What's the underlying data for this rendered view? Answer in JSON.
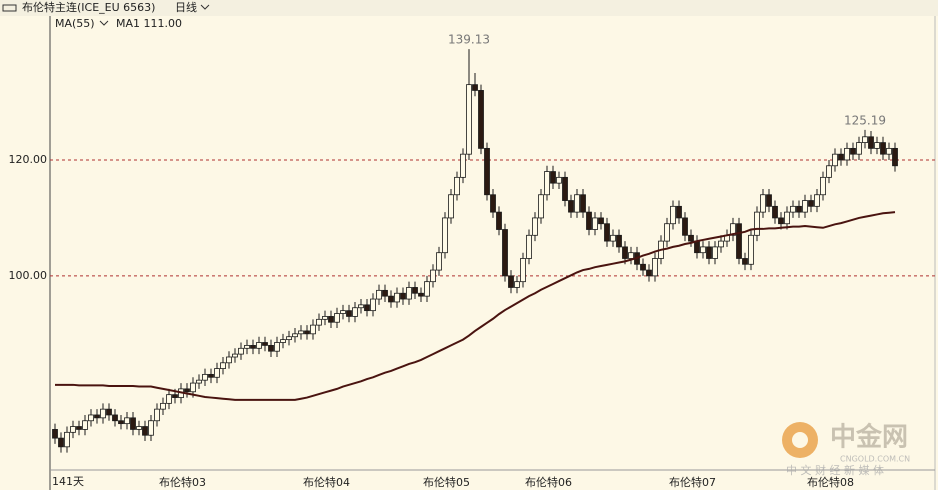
{
  "header": {
    "title": "布伦特主连(ICE_EU 6563)",
    "period": "日线",
    "indicator": "MA(55)",
    "ma_label": "MA1 111.00"
  },
  "watermark": {
    "name": "中金网",
    "url": "CNGOLD.COM.CN",
    "slogan": "中 文 财 经 新 媒 体"
  },
  "chart_data": {
    "type": "candlestick",
    "span_label": "141天",
    "categories": [
      null,
      null,
      null,
      null,
      null,
      null,
      null,
      null,
      null,
      null,
      null,
      null,
      null,
      null,
      null,
      null,
      null,
      "布伦特03",
      null,
      null,
      null,
      null,
      null,
      null,
      null,
      null,
      null,
      null,
      null,
      null,
      null,
      null,
      null,
      null,
      null,
      null,
      null,
      null,
      null,
      null,
      null,
      "布伦特04",
      null,
      null,
      null,
      null,
      null,
      null,
      null,
      null,
      null,
      null,
      null,
      null,
      null,
      null,
      null,
      null,
      null,
      null,
      null,
      "布伦特05",
      null,
      null,
      null,
      null,
      null,
      null,
      null,
      null,
      null,
      null,
      null,
      null,
      null,
      null,
      null,
      null,
      "布伦特06",
      null,
      null,
      null,
      null,
      null,
      null,
      null,
      null,
      null,
      null,
      null,
      null,
      null,
      null,
      null,
      null,
      null,
      null,
      null,
      null,
      null,
      null,
      null,
      "布伦特07",
      null,
      null,
      null,
      null,
      null,
      null,
      null,
      null,
      null,
      null,
      null,
      null,
      null,
      null,
      null,
      null,
      null,
      null,
      null,
      null,
      null,
      null,
      "布伦特08",
      null,
      null,
      null,
      null,
      null,
      null,
      null,
      null,
      null,
      null,
      null,
      null,
      null,
      null,
      null
    ],
    "open": [
      73.5,
      72,
      70.5,
      73,
      74,
      73.5,
      75,
      76,
      75.5,
      77,
      76,
      75,
      74.5,
      75.5,
      73.5,
      74,
      72.5,
      75,
      77,
      78,
      79.5,
      79,
      80.5,
      80,
      81.5,
      82,
      83,
      82.5,
      84,
      85,
      86,
      86.5,
      87.5,
      88,
      87.5,
      88.5,
      88,
      87,
      88.5,
      89,
      89.5,
      90,
      90.5,
      90,
      91.5,
      92.5,
      93,
      92,
      93.5,
      94,
      93,
      94.5,
      95,
      94,
      96,
      97.5,
      96.5,
      95.5,
      97,
      96,
      98,
      97,
      96.5,
      99,
      101,
      104,
      110,
      114,
      117,
      121,
      133,
      132,
      122,
      114,
      111,
      108,
      100,
      98,
      99,
      103,
      107,
      110,
      114,
      118,
      116,
      117,
      113,
      111,
      114,
      111,
      108,
      110,
      109,
      106,
      107,
      105,
      103,
      104,
      102,
      101,
      100,
      103,
      106,
      109,
      112,
      110,
      107,
      106,
      104,
      105,
      103,
      105,
      106,
      107,
      109,
      103,
      102,
      107,
      111,
      114,
      112,
      110,
      109,
      111,
      112,
      111,
      113,
      112,
      114,
      117,
      119,
      121,
      120,
      122,
      121,
      123,
      124,
      122,
      123,
      121,
      122
    ],
    "high": [
      74.5,
      73,
      74,
      75,
      75,
      76,
      77,
      77,
      78,
      78,
      77,
      76,
      76.5,
      76.5,
      75,
      75,
      76,
      78,
      79,
      80.5,
      80.5,
      81.5,
      81.5,
      82.5,
      83,
      84,
      84,
      85,
      86,
      87,
      87.5,
      88.5,
      89,
      89,
      89.5,
      89.5,
      89,
      89.5,
      90,
      90.5,
      91,
      91.5,
      91.5,
      92.5,
      93.5,
      94,
      94,
      94.5,
      95,
      95,
      95.5,
      96,
      96,
      97,
      98.5,
      98.5,
      97.5,
      98,
      98,
      99,
      99,
      98,
      100,
      102,
      105,
      111,
      115,
      118,
      122,
      139.13,
      135,
      133,
      123,
      115,
      112,
      109,
      101,
      100,
      104,
      108,
      111,
      115,
      119,
      119,
      118,
      118,
      114,
      115,
      115,
      112,
      111,
      111,
      110,
      108,
      108,
      106,
      105,
      105,
      103,
      102,
      104,
      107,
      110,
      113,
      113,
      111,
      108,
      107,
      106,
      106,
      106,
      107,
      108,
      110,
      110,
      104,
      108,
      112,
      115,
      115,
      113,
      111,
      112,
      113,
      113,
      114,
      114,
      115,
      118,
      120,
      122,
      122,
      123,
      123,
      124,
      125.19,
      125,
      124,
      124,
      123,
      123
    ],
    "low": [
      71,
      69.5,
      69.5,
      72,
      72.5,
      72.5,
      74,
      74.5,
      74.5,
      75,
      74,
      73.5,
      73.5,
      72.5,
      72.5,
      71.5,
      71.5,
      74,
      76,
      77,
      78,
      78,
      79,
      79,
      80.5,
      81,
      81.5,
      81.5,
      83,
      84,
      85,
      85.5,
      86.5,
      86.5,
      86.5,
      87,
      86,
      86,
      87.5,
      88,
      88.5,
      89,
      89,
      89,
      90.5,
      91.5,
      91,
      91,
      92.5,
      92,
      92,
      93.5,
      93,
      93,
      95,
      95.5,
      94.5,
      94.5,
      95,
      95,
      96,
      95.5,
      95.5,
      98,
      100,
      103,
      109,
      113,
      116,
      120,
      131,
      121,
      113,
      110,
      107,
      99,
      97,
      97,
      98,
      102,
      106,
      109,
      113,
      115,
      115,
      112,
      110,
      110,
      110,
      107,
      107,
      108,
      105,
      105,
      104,
      102,
      102,
      101,
      100,
      99,
      99,
      102,
      105,
      108,
      109,
      106,
      105,
      103,
      103,
      102,
      102,
      104,
      105,
      106,
      102,
      101,
      101,
      106,
      110,
      111,
      109,
      108,
      108,
      110,
      110,
      110,
      111,
      111,
      113,
      116,
      118,
      119,
      119,
      120,
      120,
      122,
      121,
      121,
      120,
      120,
      118
    ],
    "close": [
      72,
      70.5,
      73,
      74,
      73.5,
      75,
      76,
      75.5,
      77,
      76,
      75,
      74.5,
      75.5,
      73.5,
      74,
      72.5,
      75,
      77,
      78,
      79.5,
      79,
      80.5,
      80,
      81.5,
      82,
      83,
      82.5,
      84,
      85,
      86,
      86.5,
      87.5,
      88,
      87.5,
      88.5,
      88,
      87,
      88.5,
      89,
      89.5,
      90,
      90.5,
      90,
      91.5,
      92.5,
      93,
      92,
      93.5,
      94,
      93,
      94.5,
      95,
      94,
      96,
      97.5,
      96.5,
      95.5,
      97,
      96,
      98,
      97,
      96.5,
      99,
      101,
      104,
      110,
      114,
      117,
      121,
      133,
      132,
      122,
      114,
      111,
      108,
      100,
      98,
      99,
      103,
      107,
      110,
      114,
      118,
      116,
      117,
      113,
      111,
      114,
      111,
      108,
      110,
      109,
      106,
      107,
      105,
      103,
      104,
      102,
      101,
      100,
      103,
      106,
      109,
      112,
      110,
      107,
      106,
      104,
      105,
      103,
      105,
      106,
      107,
      109,
      103,
      102,
      107,
      111,
      114,
      112,
      110,
      109,
      111,
      112,
      111,
      113,
      112,
      114,
      117,
      119,
      121,
      120,
      122,
      121,
      123,
      124,
      122,
      123,
      121,
      122,
      119
    ],
    "ma": [
      81.2,
      81.2,
      81.2,
      81.2,
      81.1,
      81.1,
      81.1,
      81.1,
      81.1,
      81.0,
      81.0,
      81.0,
      81.0,
      81.0,
      80.9,
      80.9,
      80.9,
      80.7,
      80.5,
      80.3,
      80.1,
      79.9,
      79.7,
      79.5,
      79.3,
      79.1,
      79.0,
      78.9,
      78.8,
      78.7,
      78.6,
      78.6,
      78.6,
      78.6,
      78.6,
      78.6,
      78.6,
      78.6,
      78.6,
      78.6,
      78.6,
      78.8,
      79.0,
      79.3,
      79.6,
      79.9,
      80.2,
      80.5,
      80.9,
      81.2,
      81.5,
      81.8,
      82.2,
      82.5,
      82.9,
      83.3,
      83.6,
      84.0,
      84.4,
      84.8,
      85.1,
      85.5,
      86.0,
      86.5,
      87.0,
      87.5,
      88.0,
      88.5,
      89.0,
      89.7,
      90.5,
      91.2,
      91.9,
      92.6,
      93.4,
      94.1,
      94.7,
      95.3,
      95.9,
      96.5,
      97.0,
      97.6,
      98.1,
      98.6,
      99.1,
      99.6,
      100.1,
      100.6,
      101.0,
      101.2,
      101.5,
      101.7,
      101.9,
      102.1,
      102.3,
      102.5,
      102.8,
      103.1,
      103.5,
      103.8,
      104.2,
      104.5,
      104.7,
      105.0,
      105.2,
      105.5,
      105.7,
      106.0,
      106.2,
      106.4,
      106.6,
      106.8,
      107.0,
      107.2,
      107.4,
      107.6,
      108.0,
      108.1,
      108.1,
      108.2,
      108.2,
      108.3,
      108.4,
      108.5,
      108.5,
      108.6,
      108.5,
      108.4,
      108.3,
      108.6,
      108.9,
      109.1,
      109.4,
      109.7,
      110.0,
      110.2,
      110.4,
      110.6,
      110.8,
      110.9,
      111.0
    ],
    "annotations": [
      "139.13",
      "125.19"
    ],
    "ylim": [
      66.5,
      144.5
    ],
    "yticks": [
      {
        "value": 100,
        "label": "100.00"
      },
      {
        "value": 120,
        "label": "120.00"
      }
    ],
    "grid": true,
    "grid_color": "#b03030",
    "up_color": "#fffbe8",
    "down_color": "#2b1a12",
    "outline_color": "#1a1a1a",
    "ma_color": "#4a1410"
  }
}
